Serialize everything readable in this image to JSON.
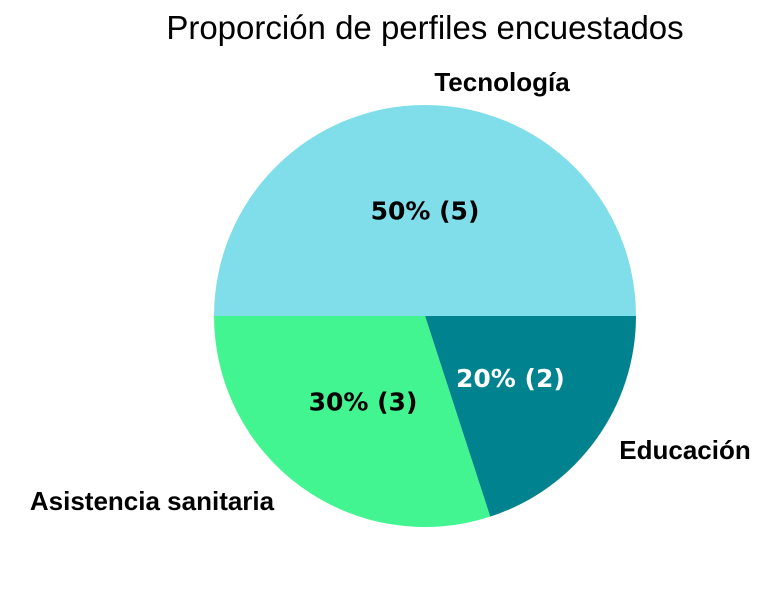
{
  "chart_data": {
    "type": "pie",
    "title": "Proporción de perfiles encuestados",
    "slices": [
      {
        "category": "Tecnología",
        "value": 5,
        "percent": 50,
        "label": "50% (5)",
        "color": "#80DEEA",
        "label_color": "#000000"
      },
      {
        "category": "Educación",
        "value": 2,
        "percent": 20,
        "label": "20% (2)",
        "color": "#00838F",
        "label_color": "#FFFFFF"
      },
      {
        "category": "Asistencia sanitaria",
        "value": 3,
        "percent": 30,
        "label": "30% (3)",
        "color": "#42F591",
        "label_color": "#000000"
      }
    ]
  }
}
